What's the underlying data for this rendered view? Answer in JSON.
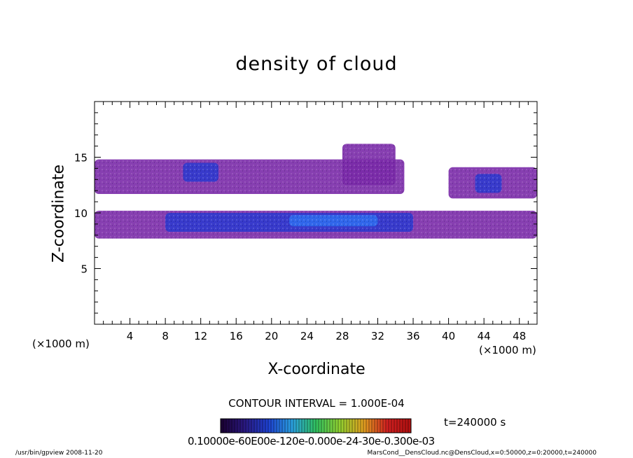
{
  "chart_data": {
    "type": "heatmap",
    "title": "density of cloud",
    "xlabel": "X-coordinate",
    "ylabel": "Z-coordinate",
    "x_unit_left": "(×1000 m)",
    "x_unit_right": "(×1000 m)",
    "xlim": [
      0,
      50
    ],
    "ylim": [
      0,
      20
    ],
    "x_ticks": [
      4,
      8,
      12,
      16,
      20,
      24,
      28,
      32,
      36,
      40,
      44,
      48
    ],
    "y_ticks": [
      5,
      10,
      15
    ],
    "contour_interval": "CONTOUR INTERVAL = 1.000E-04",
    "time_label": "t=240000 s",
    "colorbar_tick_text": "0.10000e-60E00e-120e-0.000e-24-30e-0.300e-03",
    "colorbar_colors": [
      "#1a0030",
      "#2a1880",
      "#1e40d0",
      "#2aa0e0",
      "#30c060",
      "#90d030",
      "#e0a020",
      "#d02020",
      "#b01010"
    ],
    "regions": [
      {
        "name": "upper-band",
        "x": [
          0,
          35
        ],
        "z": [
          11.7,
          14.8
        ],
        "level": 1
      },
      {
        "name": "upper-band-rise",
        "x": [
          28,
          34
        ],
        "z": [
          12.5,
          16.2
        ],
        "level": 1
      },
      {
        "name": "upper-core",
        "x": [
          10,
          14
        ],
        "z": [
          12.8,
          14.5
        ],
        "level": 2
      },
      {
        "name": "right-upper-band",
        "x": [
          40,
          50
        ],
        "z": [
          11.3,
          14.1
        ],
        "level": 1
      },
      {
        "name": "right-upper-core",
        "x": [
          43,
          46
        ],
        "z": [
          11.8,
          13.5
        ],
        "level": 2
      },
      {
        "name": "lower-band",
        "x": [
          0,
          50
        ],
        "z": [
          7.7,
          10.2
        ],
        "level": 1
      },
      {
        "name": "lower-core",
        "x": [
          8,
          36
        ],
        "z": [
          8.3,
          10.0
        ],
        "level": 2
      },
      {
        "name": "lower-peak",
        "x": [
          22,
          32
        ],
        "z": [
          8.8,
          9.8
        ],
        "level": 3
      }
    ]
  },
  "footer": {
    "left": "/usr/bin/gpview   2008-11-20",
    "right": "MarsCond__DensCloud.nc@DensCloud,x=0:50000,z=0:20000,t=240000"
  }
}
